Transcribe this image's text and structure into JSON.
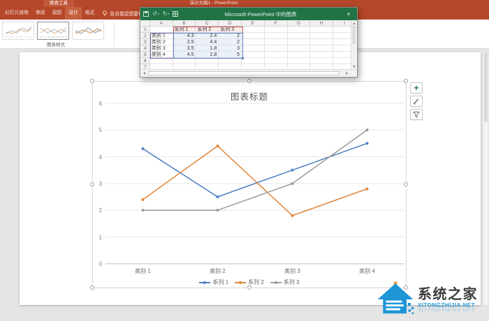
{
  "titlebar": {
    "contextual_tab_label": "图表工具",
    "app_title": "演示文稿1 - PowerPoint",
    "tabs": [
      "幻灯片放映",
      "审阅",
      "视图",
      "设计",
      "格式"
    ],
    "active_tab": "设计",
    "tell_me_label": "告诉我您想要做什么"
  },
  "ribbon": {
    "group_label": "图表样式"
  },
  "sheet_window": {
    "title": "Microsoft PowerPoint 中的图表",
    "close_label": "×",
    "column_headers": [
      "A",
      "B",
      "C",
      "D",
      "E",
      "F",
      "G",
      "H",
      "I"
    ],
    "row_headers": [
      "1",
      "2",
      "3",
      "4",
      "5",
      "6",
      "7"
    ],
    "cells": [
      [
        "",
        "系列 1",
        "系列 2",
        "系列 3",
        "",
        "",
        "",
        "",
        ""
      ],
      [
        "类别 1",
        "4.3",
        "2.4",
        "2",
        "",
        "",
        "",
        "",
        ""
      ],
      [
        "类别 2",
        "2.5",
        "4.4",
        "2",
        "",
        "",
        "",
        "",
        ""
      ],
      [
        "类别 3",
        "3.5",
        "1.8",
        "3",
        "",
        "",
        "",
        "",
        ""
      ],
      [
        "类别 4",
        "4.5",
        "2.8",
        "5",
        "",
        "",
        "",
        "",
        ""
      ],
      [
        "",
        "",
        "",
        "",
        "",
        "",
        "",
        "",
        ""
      ],
      [
        "",
        "",
        "",
        "",
        "",
        "",
        "",
        "",
        ""
      ]
    ]
  },
  "chart_data": {
    "type": "line",
    "title": "图表标题",
    "categories": [
      "类别 1",
      "类别 2",
      "类别 3",
      "类别 4"
    ],
    "series": [
      {
        "name": "系列 1",
        "values": [
          4.3,
          2.5,
          3.5,
          4.5
        ],
        "color": "#4E7EC1"
      },
      {
        "name": "系列 2",
        "values": [
          2.4,
          4.4,
          1.8,
          2.8
        ],
        "color": "#E08639"
      },
      {
        "name": "系列 3",
        "values": [
          2,
          2,
          3,
          5
        ],
        "color": "#9B9B9B"
      }
    ],
    "y_ticks": [
      0,
      1,
      2,
      3,
      4,
      5,
      6
    ],
    "ylim": [
      0,
      6
    ],
    "grid": true,
    "legend_position": "bottom"
  },
  "watermark": {
    "title": "系统之家",
    "domain": "XITONGZHIJIA.NET"
  },
  "colors": {
    "ppt_red": "#B7472A",
    "excel_green": "#217346",
    "highlight_series": "#C0504D",
    "highlight_categories": "#7B5CA8",
    "highlight_values": "#4F81BD"
  }
}
